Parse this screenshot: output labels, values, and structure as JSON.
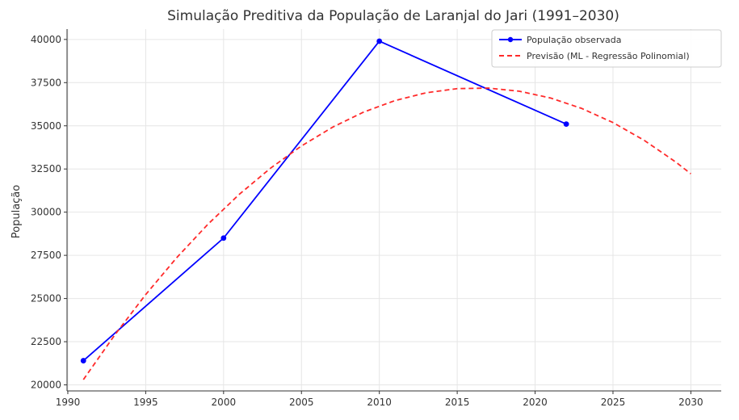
{
  "chart_data": {
    "type": "line",
    "title": "Simulação Preditiva da População de Laranjal do Jari (1991–2030)",
    "xlabel": "",
    "ylabel": "População",
    "xlim": [
      1989.95,
      2031.95
    ],
    "ylim": [
      19650,
      40600
    ],
    "x_ticks": [
      1990,
      1995,
      2000,
      2005,
      2010,
      2015,
      2020,
      2025,
      2030
    ],
    "y_ticks": [
      20000,
      22500,
      25000,
      27500,
      30000,
      32500,
      35000,
      37500,
      40000
    ],
    "grid": true,
    "legend_position": "top-right",
    "series": [
      {
        "name": "População observada",
        "style": "solid-line-with-markers",
        "color": "#0000ff",
        "x": [
          1991,
          2000,
          2010,
          2022
        ],
        "y": [
          21400,
          28500,
          39900,
          35100
        ]
      },
      {
        "name": "Previsão (ML - Regressão Polinomial)",
        "style": "dashed-line",
        "color": "#ff2a2a",
        "x": [
          1991,
          1993,
          1995,
          1997,
          1999,
          2001,
          2003,
          2005,
          2007,
          2009,
          2011,
          2013,
          2015,
          2017,
          2019,
          2021,
          2023,
          2025,
          2027,
          2029,
          2030
        ],
        "y": [
          20306,
          22873,
          25229,
          27373,
          29305,
          31026,
          32536,
          33834,
          34920,
          35796,
          36460,
          36912,
          37153,
          37183,
          37001,
          36608,
          36004,
          35188,
          34161,
          32922,
          32222
        ]
      }
    ]
  }
}
